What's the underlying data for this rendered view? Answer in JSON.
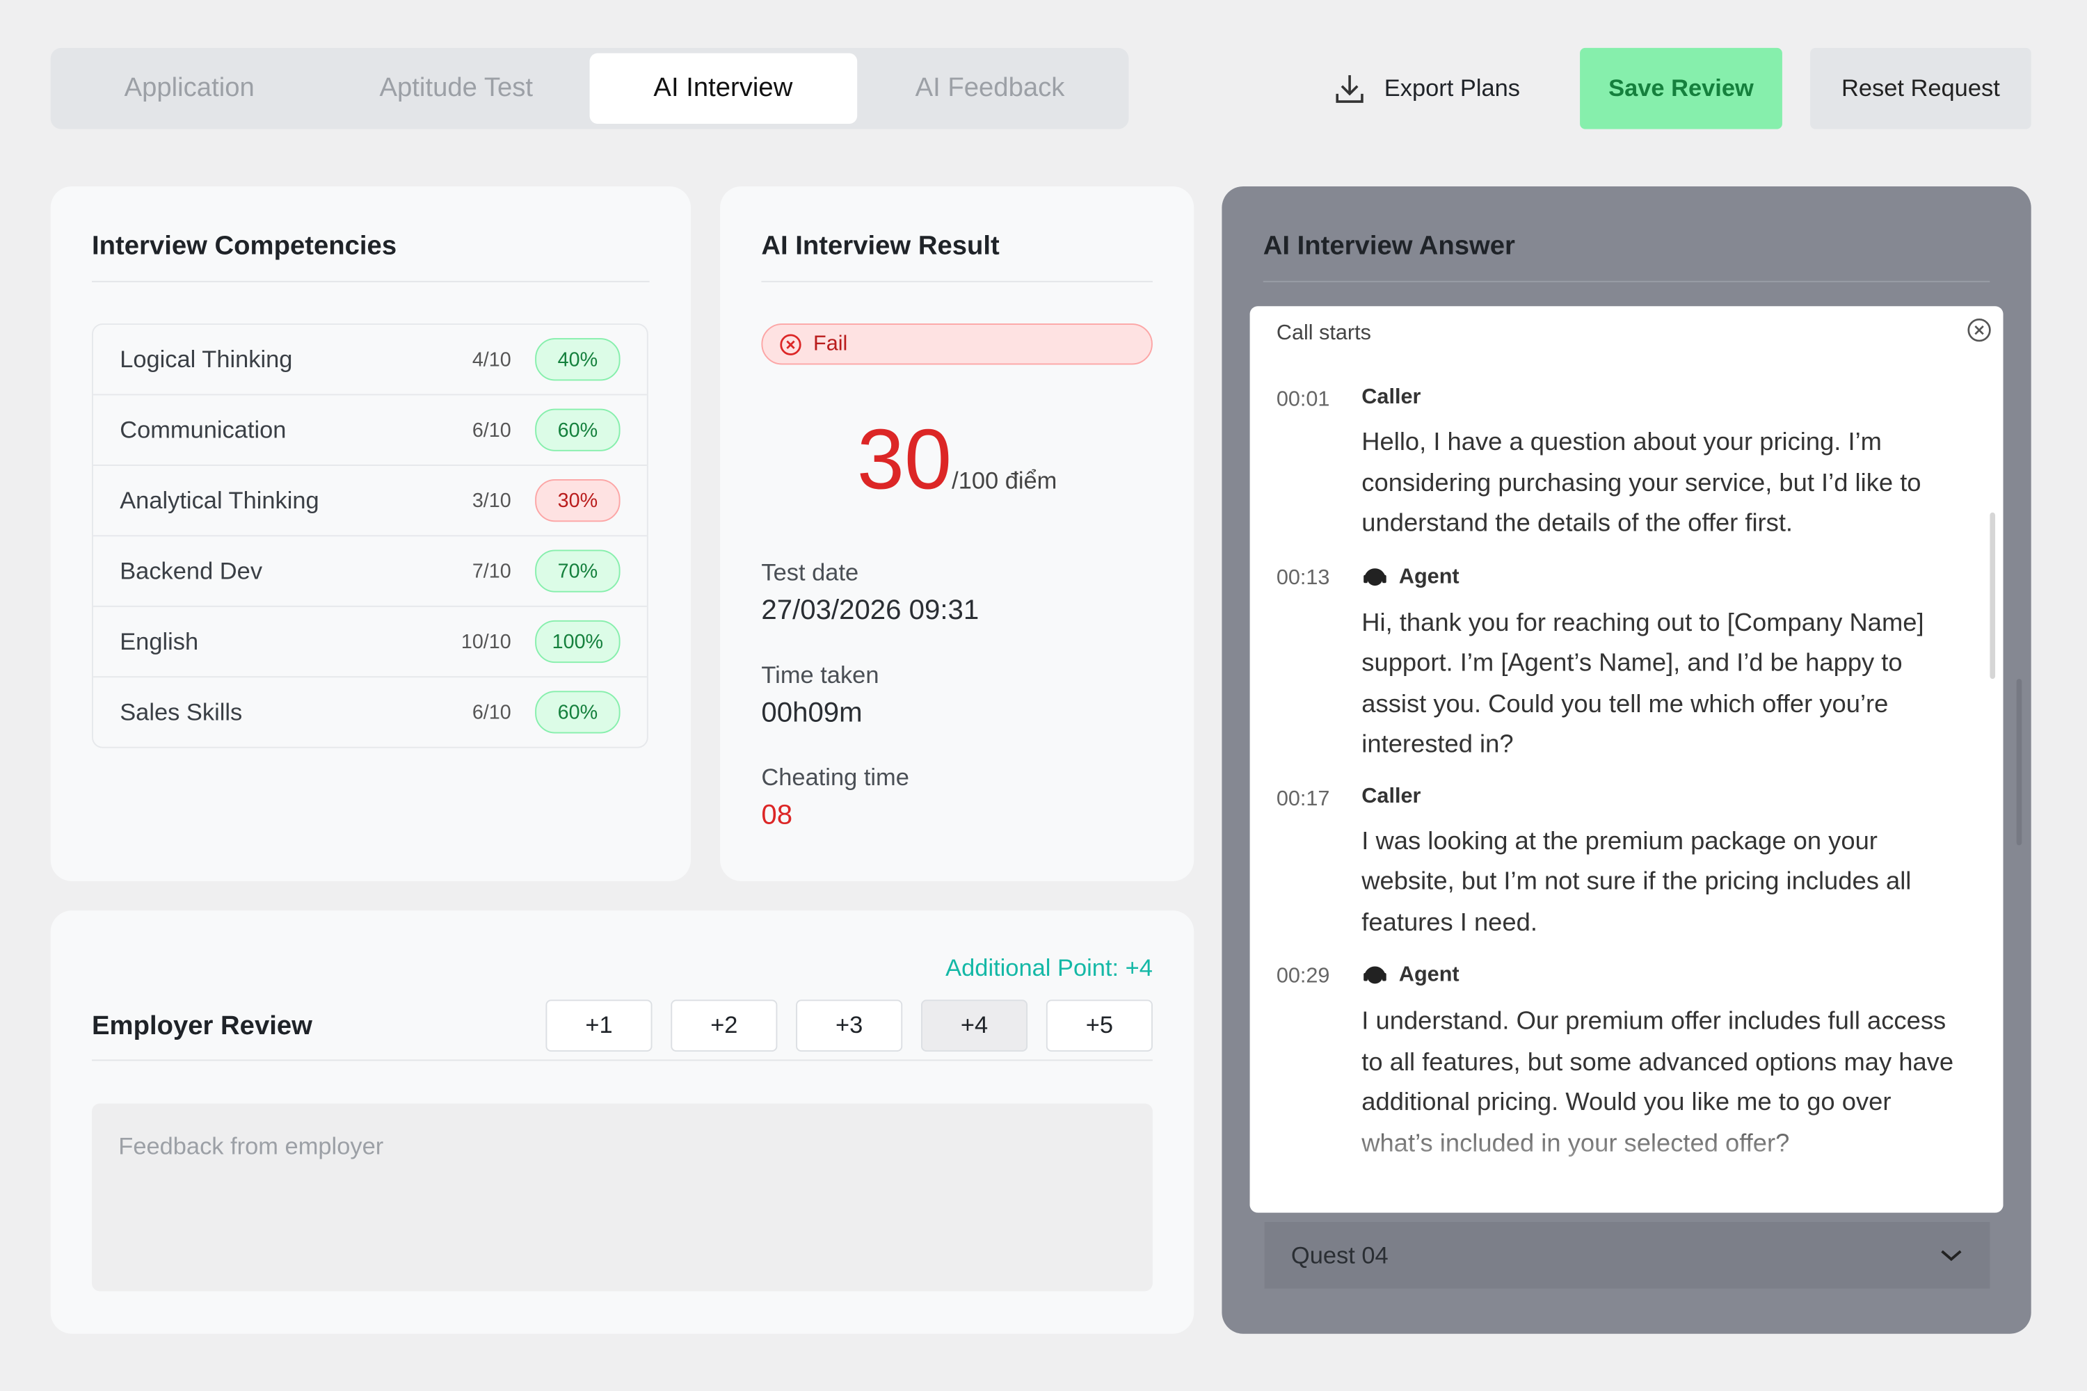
{
  "tabs": [
    "Application",
    "Aptitude Test",
    "AI Interview",
    "AI Feedback"
  ],
  "active_tab": 2,
  "actions": {
    "export": "Export Plans",
    "save": "Save Review",
    "reset": "Reset Request"
  },
  "competencies": {
    "title": "Interview Competencies",
    "items": [
      {
        "name": "Logical Thinking",
        "score": "4/10",
        "percent": "40%",
        "color": "green"
      },
      {
        "name": "Communication",
        "score": "6/10",
        "percent": "60%",
        "color": "green"
      },
      {
        "name": "Analytical Thinking",
        "score": "3/10",
        "percent": "30%",
        "color": "red"
      },
      {
        "name": "Backend Dev",
        "score": "7/10",
        "percent": "70%",
        "color": "green"
      },
      {
        "name": "English",
        "score": "10/10",
        "percent": "100%",
        "color": "green"
      },
      {
        "name": "Sales Skills",
        "score": "6/10",
        "percent": "60%",
        "color": "green"
      }
    ]
  },
  "result": {
    "title": "AI Interview Result",
    "status": "Fail",
    "score": "30",
    "score_suffix": "/100 điểm",
    "fields": [
      {
        "label": "Test date",
        "value": "27/03/2026 09:31"
      },
      {
        "label": "Time taken",
        "value": "00h09m"
      },
      {
        "label": "Cheating time",
        "value": "08",
        "color": "red"
      }
    ]
  },
  "review": {
    "title": "Employer Review",
    "additional": "Additional Point: +4",
    "points": [
      "+1",
      "+2",
      "+3",
      "+4",
      "+5"
    ],
    "selected_point": 3,
    "placeholder": "Feedback from employer"
  },
  "answer": {
    "title": "AI Interview Answer",
    "call_start": "Call starts",
    "question": "Quest 04",
    "messages": [
      {
        "time": "00:01",
        "speaker": "Caller",
        "text": "Hello, I have a question about your pricing. I’m considering purchasing your service, but I’d like to understand the details of the offer first."
      },
      {
        "time": "00:13",
        "speaker": "Agent",
        "text": "Hi, thank you for reaching out to [Company Name] support. I’m [Agent’s Name], and I’d be happy to assist you. Could you tell me which offer you’re interested in?"
      },
      {
        "time": "00:17",
        "speaker": "Caller",
        "text": "I was looking at the premium package on your website, but I’m not sure if the pricing includes all features I need."
      },
      {
        "time": "00:29",
        "speaker": "Agent",
        "text": "I understand. Our premium offer includes full access to all features, but some advanced options may have additional pricing. Would you like me to go over what’s included in your selected offer?"
      }
    ]
  }
}
